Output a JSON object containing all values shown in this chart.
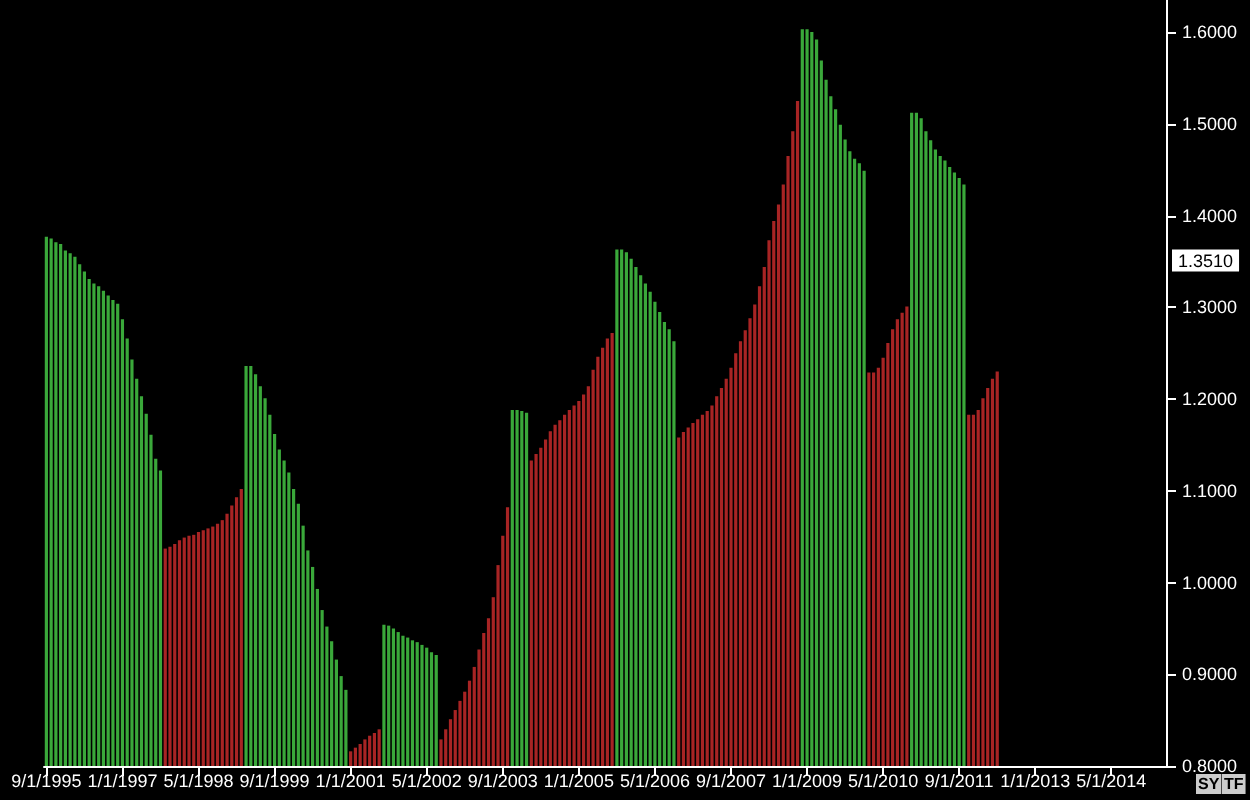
{
  "chart_data": {
    "type": "bar",
    "categories": [
      "9/1/1995",
      null,
      null,
      null,
      null,
      null,
      null,
      null,
      null,
      null,
      null,
      null,
      null,
      null,
      null,
      null,
      "1/1/1997",
      null,
      null,
      null,
      null,
      null,
      null,
      null,
      null,
      null,
      null,
      null,
      null,
      null,
      null,
      null,
      "5/1/1998",
      null,
      null,
      null,
      null,
      null,
      null,
      null,
      null,
      null,
      null,
      null,
      null,
      null,
      null,
      null,
      "9/1/1999",
      null,
      null,
      null,
      null,
      null,
      null,
      null,
      null,
      null,
      null,
      null,
      null,
      null,
      null,
      null,
      "1/1/2001",
      null,
      null,
      null,
      null,
      null,
      null,
      null,
      null,
      null,
      null,
      null,
      null,
      null,
      null,
      null,
      "5/1/2002",
      null,
      null,
      null,
      null,
      null,
      null,
      null,
      null,
      null,
      null,
      null,
      null,
      null,
      null,
      null,
      "9/1/2003",
      null,
      null,
      null,
      null,
      null,
      null,
      null,
      null,
      null,
      null,
      null,
      null,
      null,
      null,
      null,
      "1/1/2005",
      null,
      null,
      null,
      null,
      null,
      null,
      null,
      null,
      null,
      null,
      null,
      null,
      null,
      null,
      null,
      "5/1/2006",
      null,
      null,
      null,
      null,
      null,
      null,
      null,
      null,
      null,
      null,
      null,
      null,
      null,
      null,
      null,
      "9/1/2007",
      null,
      null,
      null,
      null,
      null,
      null,
      null,
      null,
      null,
      null,
      null,
      null,
      null,
      null,
      null,
      "1/1/2009",
      null,
      null,
      null,
      null,
      null,
      null,
      null,
      null,
      null,
      null,
      null,
      null,
      null,
      null,
      null,
      "5/1/2010",
      null,
      null,
      null,
      null,
      null,
      null,
      null,
      null,
      null,
      null,
      null,
      null,
      null,
      null,
      null,
      "9/1/2011",
      null,
      null,
      null,
      null,
      null,
      null,
      null,
      null,
      null,
      null,
      null,
      null,
      null,
      null,
      null,
      "1/1/2013",
      null,
      null,
      null,
      null,
      null,
      null,
      null,
      null,
      null,
      null,
      null,
      null,
      null,
      null,
      null,
      "5/1/2014",
      null,
      null,
      null,
      null,
      null,
      null,
      null,
      null,
      null,
      null,
      null
    ],
    "series": [
      {
        "color": "#3aa83a",
        "values": [
          1.377,
          1.375,
          1.371,
          1.369,
          1.362,
          1.359,
          1.355,
          1.347,
          1.339,
          1.331,
          1.326,
          1.323,
          1.318,
          1.313,
          1.308,
          1.304,
          1.287,
          1.266,
          1.243,
          1.222,
          1.203,
          1.184,
          1.161,
          1.135,
          1.122,
          null,
          null,
          null,
          null,
          null,
          null,
          null,
          null,
          null,
          null,
          null,
          null,
          null,
          null,
          null,
          null,
          null,
          1.236,
          1.236,
          1.227,
          1.214,
          1.201,
          1.183,
          1.162,
          1.145,
          1.133,
          1.12,
          1.102,
          1.086,
          1.062,
          1.035,
          1.017,
          0.993,
          0.97,
          0.952,
          0.936,
          0.916,
          0.898,
          0.883,
          null,
          null,
          null,
          null,
          null,
          null,
          null,
          0.954,
          0.953,
          0.95,
          0.946,
          0.942,
          0.94,
          0.937,
          0.935,
          0.932,
          0.929,
          0.924,
          0.921,
          null,
          null,
          null,
          null,
          null,
          null,
          null,
          null,
          null,
          null,
          null,
          null,
          null,
          null,
          null,
          1.188,
          1.188,
          1.187,
          1.185,
          null,
          null,
          null,
          null,
          null,
          null,
          null,
          null,
          null,
          null,
          null,
          null,
          null,
          null,
          null,
          null,
          null,
          null,
          1.363,
          1.363,
          1.36,
          1.353,
          1.344,
          1.335,
          1.326,
          1.317,
          1.306,
          1.295,
          1.284,
          1.276,
          1.263,
          null,
          null,
          null,
          null,
          null,
          null,
          null,
          null,
          null,
          null,
          null,
          null,
          null,
          null,
          null,
          null,
          null,
          null,
          null,
          null,
          null,
          null,
          null,
          null,
          null,
          null,
          1.603,
          1.603,
          1.6,
          1.592,
          1.569,
          1.548,
          1.53,
          1.516,
          1.499,
          1.483,
          1.47,
          1.462,
          1.457,
          1.449,
          null,
          null,
          null,
          null,
          null,
          null,
          null,
          null,
          null,
          1.512,
          1.512,
          1.506,
          1.492,
          1.482,
          1.472,
          1.465,
          1.46,
          1.453,
          1.447,
          1.441,
          1.434,
          null,
          null,
          null,
          null,
          null,
          null,
          null,
          null,
          null,
          null,
          null,
          null,
          null,
          null,
          null,
          null,
          null,
          null,
          null,
          null,
          null,
          null,
          null,
          null,
          null,
          null,
          null,
          null,
          null,
          null,
          null,
          null,
          null,
          null,
          null,
          null,
          null,
          null,
          null,
          null,
          null,
          null
        ]
      },
      {
        "color": "#a82424",
        "values": [
          null,
          null,
          null,
          null,
          null,
          null,
          null,
          null,
          null,
          null,
          null,
          null,
          null,
          null,
          null,
          null,
          null,
          null,
          null,
          null,
          null,
          null,
          null,
          null,
          null,
          1.037,
          1.039,
          1.042,
          1.046,
          1.049,
          1.051,
          1.052,
          1.055,
          1.057,
          1.059,
          1.061,
          1.064,
          1.068,
          1.075,
          1.084,
          1.093,
          1.102,
          null,
          null,
          null,
          null,
          null,
          null,
          null,
          null,
          null,
          null,
          null,
          null,
          null,
          null,
          null,
          null,
          null,
          null,
          null,
          null,
          null,
          null,
          0.816,
          0.82,
          0.824,
          0.829,
          0.833,
          0.836,
          0.84,
          null,
          null,
          null,
          null,
          null,
          null,
          null,
          null,
          null,
          null,
          null,
          null,
          0.829,
          0.84,
          0.851,
          0.861,
          0.871,
          0.881,
          0.893,
          0.908,
          0.927,
          0.945,
          0.961,
          0.984,
          1.019,
          1.051,
          1.082,
          null,
          null,
          null,
          null,
          1.133,
          1.14,
          1.147,
          1.156,
          1.165,
          1.172,
          1.177,
          1.183,
          1.188,
          1.193,
          1.198,
          1.205,
          1.214,
          1.232,
          1.246,
          1.256,
          1.266,
          1.272,
          null,
          null,
          null,
          null,
          null,
          null,
          null,
          null,
          null,
          null,
          null,
          null,
          null,
          1.158,
          1.164,
          1.169,
          1.174,
          1.178,
          1.183,
          1.187,
          1.193,
          1.203,
          1.212,
          1.222,
          1.234,
          1.25,
          1.263,
          1.275,
          1.288,
          1.303,
          1.323,
          1.344,
          1.373,
          1.394,
          1.412,
          1.434,
          1.465,
          1.492,
          1.525,
          null,
          null,
          null,
          null,
          null,
          null,
          null,
          null,
          null,
          null,
          null,
          null,
          null,
          null,
          1.229,
          1.229,
          1.234,
          1.245,
          1.261,
          1.276,
          1.287,
          1.294,
          1.301,
          null,
          null,
          null,
          null,
          null,
          null,
          null,
          null,
          null,
          null,
          null,
          null,
          1.183,
          1.183,
          1.188,
          1.201,
          1.212,
          1.222,
          1.23,
          null,
          null,
          null,
          null,
          null,
          null,
          null,
          null,
          null,
          null,
          null,
          null,
          null,
          null,
          null,
          null,
          null,
          null,
          null,
          null,
          null,
          null,
          null,
          null,
          null,
          null,
          null,
          null,
          null,
          null,
          null,
          null,
          null,
          null,
          null
        ]
      }
    ],
    "ylim": [
      0.8,
      1.635
    ],
    "yticks": [
      {
        "value": 0.8,
        "label": "0.8000"
      },
      {
        "value": 0.9,
        "label": "0.9000"
      },
      {
        "value": 1.0,
        "label": "1.0000"
      },
      {
        "value": 1.1,
        "label": "1.1000"
      },
      {
        "value": 1.2,
        "label": "1.2000"
      },
      {
        "value": 1.3,
        "label": "1.3000"
      },
      {
        "value": 1.4,
        "label": "1.4000"
      },
      {
        "value": 1.5,
        "label": "1.5000"
      },
      {
        "value": 1.6,
        "label": "1.6000"
      }
    ],
    "annotations": [
      {
        "text": "1.3510",
        "y": 1.351
      },
      "SY",
      "TF"
    ]
  }
}
